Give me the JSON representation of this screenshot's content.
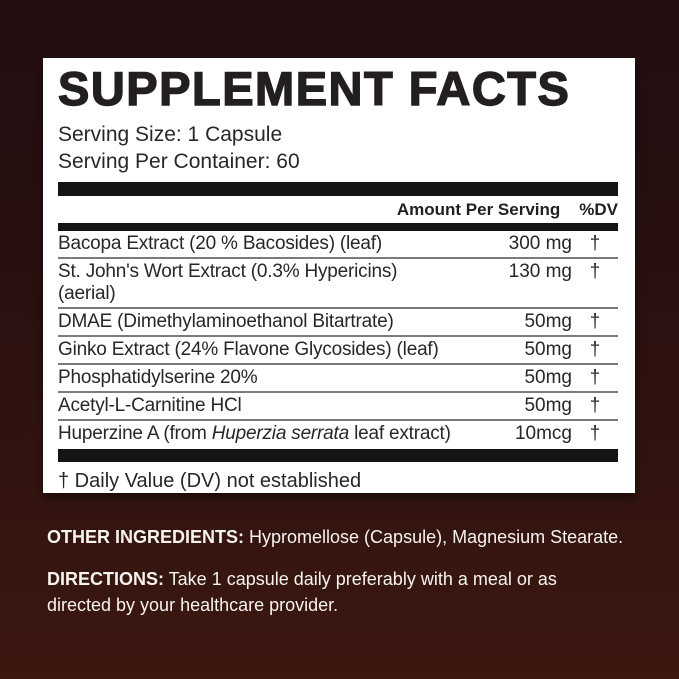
{
  "label": {
    "title": "SUPPLEMENT FACTS",
    "serving_size": "Serving Size: 1 Capsule",
    "serving_per_container": "Serving Per Container: 60",
    "columns": {
      "amount": "Amount Per Serving",
      "dv": "%DV"
    },
    "rows": [
      {
        "name_pre": "Bacopa Extract (20 % Bacosides) (leaf)",
        "name_italic": "",
        "name_post": "",
        "name_line2": "",
        "amount": "300 mg",
        "dv": "†"
      },
      {
        "name_pre": "St. John's Wort Extract (0.3% Hypericins)",
        "name_italic": "",
        "name_post": "",
        "name_line2": "(aerial)",
        "amount": "130 mg",
        "dv": "†"
      },
      {
        "name_pre": "DMAE (Dimethylaminoethanol Bitartrate)",
        "name_italic": "",
        "name_post": "",
        "name_line2": "",
        "amount": "50mg",
        "dv": "†"
      },
      {
        "name_pre": "Ginko Extract (24% Flavone Glycosides) (leaf)",
        "name_italic": "",
        "name_post": "",
        "name_line2": "",
        "amount": "50mg",
        "dv": "†"
      },
      {
        "name_pre": "Phosphatidylserine 20%",
        "name_italic": "",
        "name_post": "",
        "name_line2": "",
        "amount": "50mg",
        "dv": "†"
      },
      {
        "name_pre": "Acetyl-L-Carnitine HCl",
        "name_italic": "",
        "name_post": "",
        "name_line2": "",
        "amount": "50mg",
        "dv": "†"
      },
      {
        "name_pre": "Huperzine A (from ",
        "name_italic": "Huperzia serrata",
        "name_post": " leaf extract)",
        "name_line2": "",
        "amount": "10mcg",
        "dv": "†"
      }
    ],
    "footnote": "† Daily Value (DV) not established"
  },
  "below": {
    "other_ingredients_label": "OTHER INGREDIENTS:",
    "other_ingredients_text": " Hypromellose (Capsule), Magnesium Stearate.",
    "directions_label": "DIRECTIONS:",
    "directions_text": " Take 1 capsule daily preferably with a meal or as directed by your healthcare provider."
  },
  "colors": {
    "background_top": "#240e10",
    "background_bottom": "#3d1710",
    "panel_background": "#ffffff",
    "panel_text": "#231f20",
    "divider_bar": "#161314",
    "row_separator": "#7b7b7b",
    "below_text": "#f7f3ee"
  }
}
